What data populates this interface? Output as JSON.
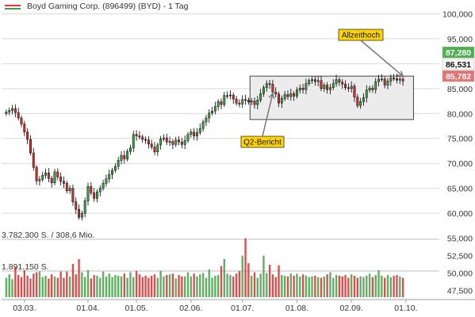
{
  "header": {
    "title": "Boyd Gaming Corp. (896499) (BYD) - 1 Tag"
  },
  "colors": {
    "up": "#43a047",
    "down": "#d32f2f",
    "wick": "#000000",
    "grid": "#d9d9d9",
    "range_fill": "#ececec",
    "callout_fill": "#ffd400",
    "price_high_label": "#4caf50",
    "price_current_label": "#f5f5f5",
    "price_low_label": "#e57373",
    "legend_red": "#e53935",
    "legend_green": "#43a047"
  },
  "chart_data": {
    "type": "candlestick",
    "price_axis": {
      "ticks": [
        "100,000",
        "95,000",
        "90,000",
        "85,000",
        "80,000",
        "75,000",
        "70,000",
        "65,000",
        "60,000"
      ],
      "tick_values": [
        100000,
        95000,
        90000,
        85000,
        80000,
        75000,
        70000,
        65000,
        60000
      ],
      "range": [
        57000,
        101500
      ]
    },
    "price_labels": [
      {
        "text": "87,280",
        "value": 87280,
        "kind": "high"
      },
      {
        "text": "86,531",
        "value": 86531,
        "kind": "current"
      },
      {
        "text": "85,782",
        "value": 85782,
        "kind": "low"
      }
    ],
    "annotations": [
      {
        "text": "Allzeithoch",
        "index": 131,
        "price": 87500
      },
      {
        "text": "Q2-Bericht",
        "index": 88,
        "price": 84000
      }
    ],
    "range_box": {
      "start_index": 81,
      "end_index": 134,
      "top": 87500,
      "bottom": 78800
    },
    "volume_panel": {
      "label_top": "3.782.300 S. / 308,6 Mio.",
      "label_mid": "1.891.150 S.",
      "ticks": [
        "55,000",
        "52,500",
        "50,000",
        "47,500"
      ],
      "tick_values": [
        55000,
        52500,
        50000,
        47500
      ],
      "range": [
        46500,
        56000
      ]
    },
    "x_axis": {
      "labels": [
        "03.03.",
        "01.04.",
        "01.05.",
        "02.06.",
        "01.07.",
        "01.08.",
        "02.09.",
        "01.10."
      ],
      "label_indices": [
        6,
        27,
        43,
        61,
        78,
        96,
        114,
        132
      ]
    },
    "close": [
      80300,
      80600,
      81000,
      80200,
      79100,
      77900,
      76300,
      74800,
      72100,
      69200,
      66500,
      66800,
      67600,
      68100,
      67000,
      66100,
      68300,
      67300,
      66400,
      66000,
      64500,
      65000,
      62300,
      60800,
      59200,
      60000,
      62500,
      65400,
      64100,
      63000,
      64300,
      65000,
      66000,
      66900,
      67800,
      68600,
      69400,
      70600,
      71600,
      70900,
      72400,
      73100,
      75800,
      75500,
      75300,
      74800,
      74700,
      73900,
      73300,
      72300,
      73700,
      74900,
      75100,
      74300,
      74400,
      73800,
      74700,
      74300,
      73800,
      74600,
      75800,
      76300,
      75500,
      76200,
      77000,
      78300,
      79100,
      80100,
      80500,
      81400,
      82400,
      81800,
      83600,
      83600,
      83700,
      82900,
      82100,
      81900,
      82800,
      82700,
      82300,
      82500,
      81800,
      82700,
      84000,
      85200,
      86000,
      85900,
      84300,
      83900,
      82100,
      83000,
      83800,
      83400,
      84000,
      83500,
      84700,
      85100,
      84800,
      86000,
      86600,
      86800,
      86400,
      86600,
      85000,
      85700,
      84800,
      85200,
      86000,
      86800,
      86300,
      85900,
      85200,
      85000,
      85500,
      83300,
      81600,
      82400,
      83200,
      84700,
      85100,
      84800,
      86400,
      86900,
      86900,
      85700,
      86500,
      87100,
      87000,
      86700,
      86900,
      86531
    ],
    "open": [
      80000,
      80300,
      80600,
      81000,
      80200,
      79100,
      77900,
      76300,
      74800,
      72100,
      69200,
      66500,
      66800,
      67600,
      68100,
      67000,
      66100,
      68300,
      67300,
      66400,
      66000,
      64500,
      65000,
      62300,
      60800,
      59200,
      60000,
      62500,
      65400,
      64100,
      63000,
      64300,
      65000,
      66000,
      66900,
      67800,
      68600,
      69400,
      70600,
      71600,
      70900,
      72400,
      73100,
      75800,
      75500,
      75300,
      74800,
      74700,
      73900,
      73300,
      72300,
      73700,
      74900,
      75100,
      74300,
      74400,
      73800,
      74700,
      74300,
      73800,
      74600,
      75800,
      76300,
      75500,
      76200,
      77000,
      78300,
      79100,
      80100,
      80500,
      81400,
      82400,
      81800,
      83600,
      83600,
      83700,
      82900,
      82100,
      81900,
      82800,
      82700,
      82300,
      82500,
      81800,
      82700,
      84000,
      85200,
      86000,
      85900,
      84300,
      83900,
      82100,
      83000,
      83800,
      83400,
      84000,
      83500,
      84700,
      85100,
      84800,
      86000,
      86600,
      86800,
      86400,
      86600,
      85000,
      85700,
      84800,
      85200,
      86000,
      86800,
      86300,
      85900,
      85200,
      85000,
      85500,
      83300,
      81600,
      82400,
      83200,
      84700,
      85100,
      84800,
      86400,
      86900,
      86900,
      85700,
      86500,
      87100,
      87000,
      86700,
      86900
    ],
    "volume": [
      49300,
      49800,
      49100,
      50900,
      49700,
      49400,
      50400,
      49600,
      49200,
      49900,
      50100,
      50200,
      49400,
      49600,
      49200,
      49800,
      49500,
      49300,
      50200,
      49300,
      50200,
      49500,
      51300,
      49800,
      52000,
      50100,
      49400,
      50400,
      49200,
      49700,
      49600,
      49300,
      50200,
      49500,
      49900,
      49400,
      49700,
      49600,
      49500,
      49900,
      49300,
      50100,
      49400,
      50300,
      49800,
      49400,
      49600,
      49300,
      49600,
      49800,
      49300,
      50300,
      49500,
      49700,
      49800,
      49900,
      49200,
      49700,
      49500,
      49500,
      50100,
      49500,
      49900,
      49500,
      49800,
      50000,
      49300,
      50500,
      49300,
      49600,
      49700,
      51000,
      52000,
      49900,
      49700,
      49500,
      49900,
      50300,
      52500,
      55000,
      51400,
      49600,
      50100,
      49300,
      49900,
      52500,
      50000,
      51200,
      49800,
      49400,
      51100,
      49700,
      49600,
      49500,
      49900,
      49600,
      49900,
      49500,
      49800,
      49600,
      49400,
      49500,
      49600,
      49400,
      49300,
      49500,
      49800,
      50100,
      49300,
      49700,
      49600,
      49500,
      49700,
      49300,
      49800,
      49600,
      49300,
      49500,
      49400,
      49600,
      49900,
      49400,
      49700,
      50400,
      49600,
      49300,
      49700,
      49400,
      49600,
      49700,
      49500,
      49300
    ]
  }
}
